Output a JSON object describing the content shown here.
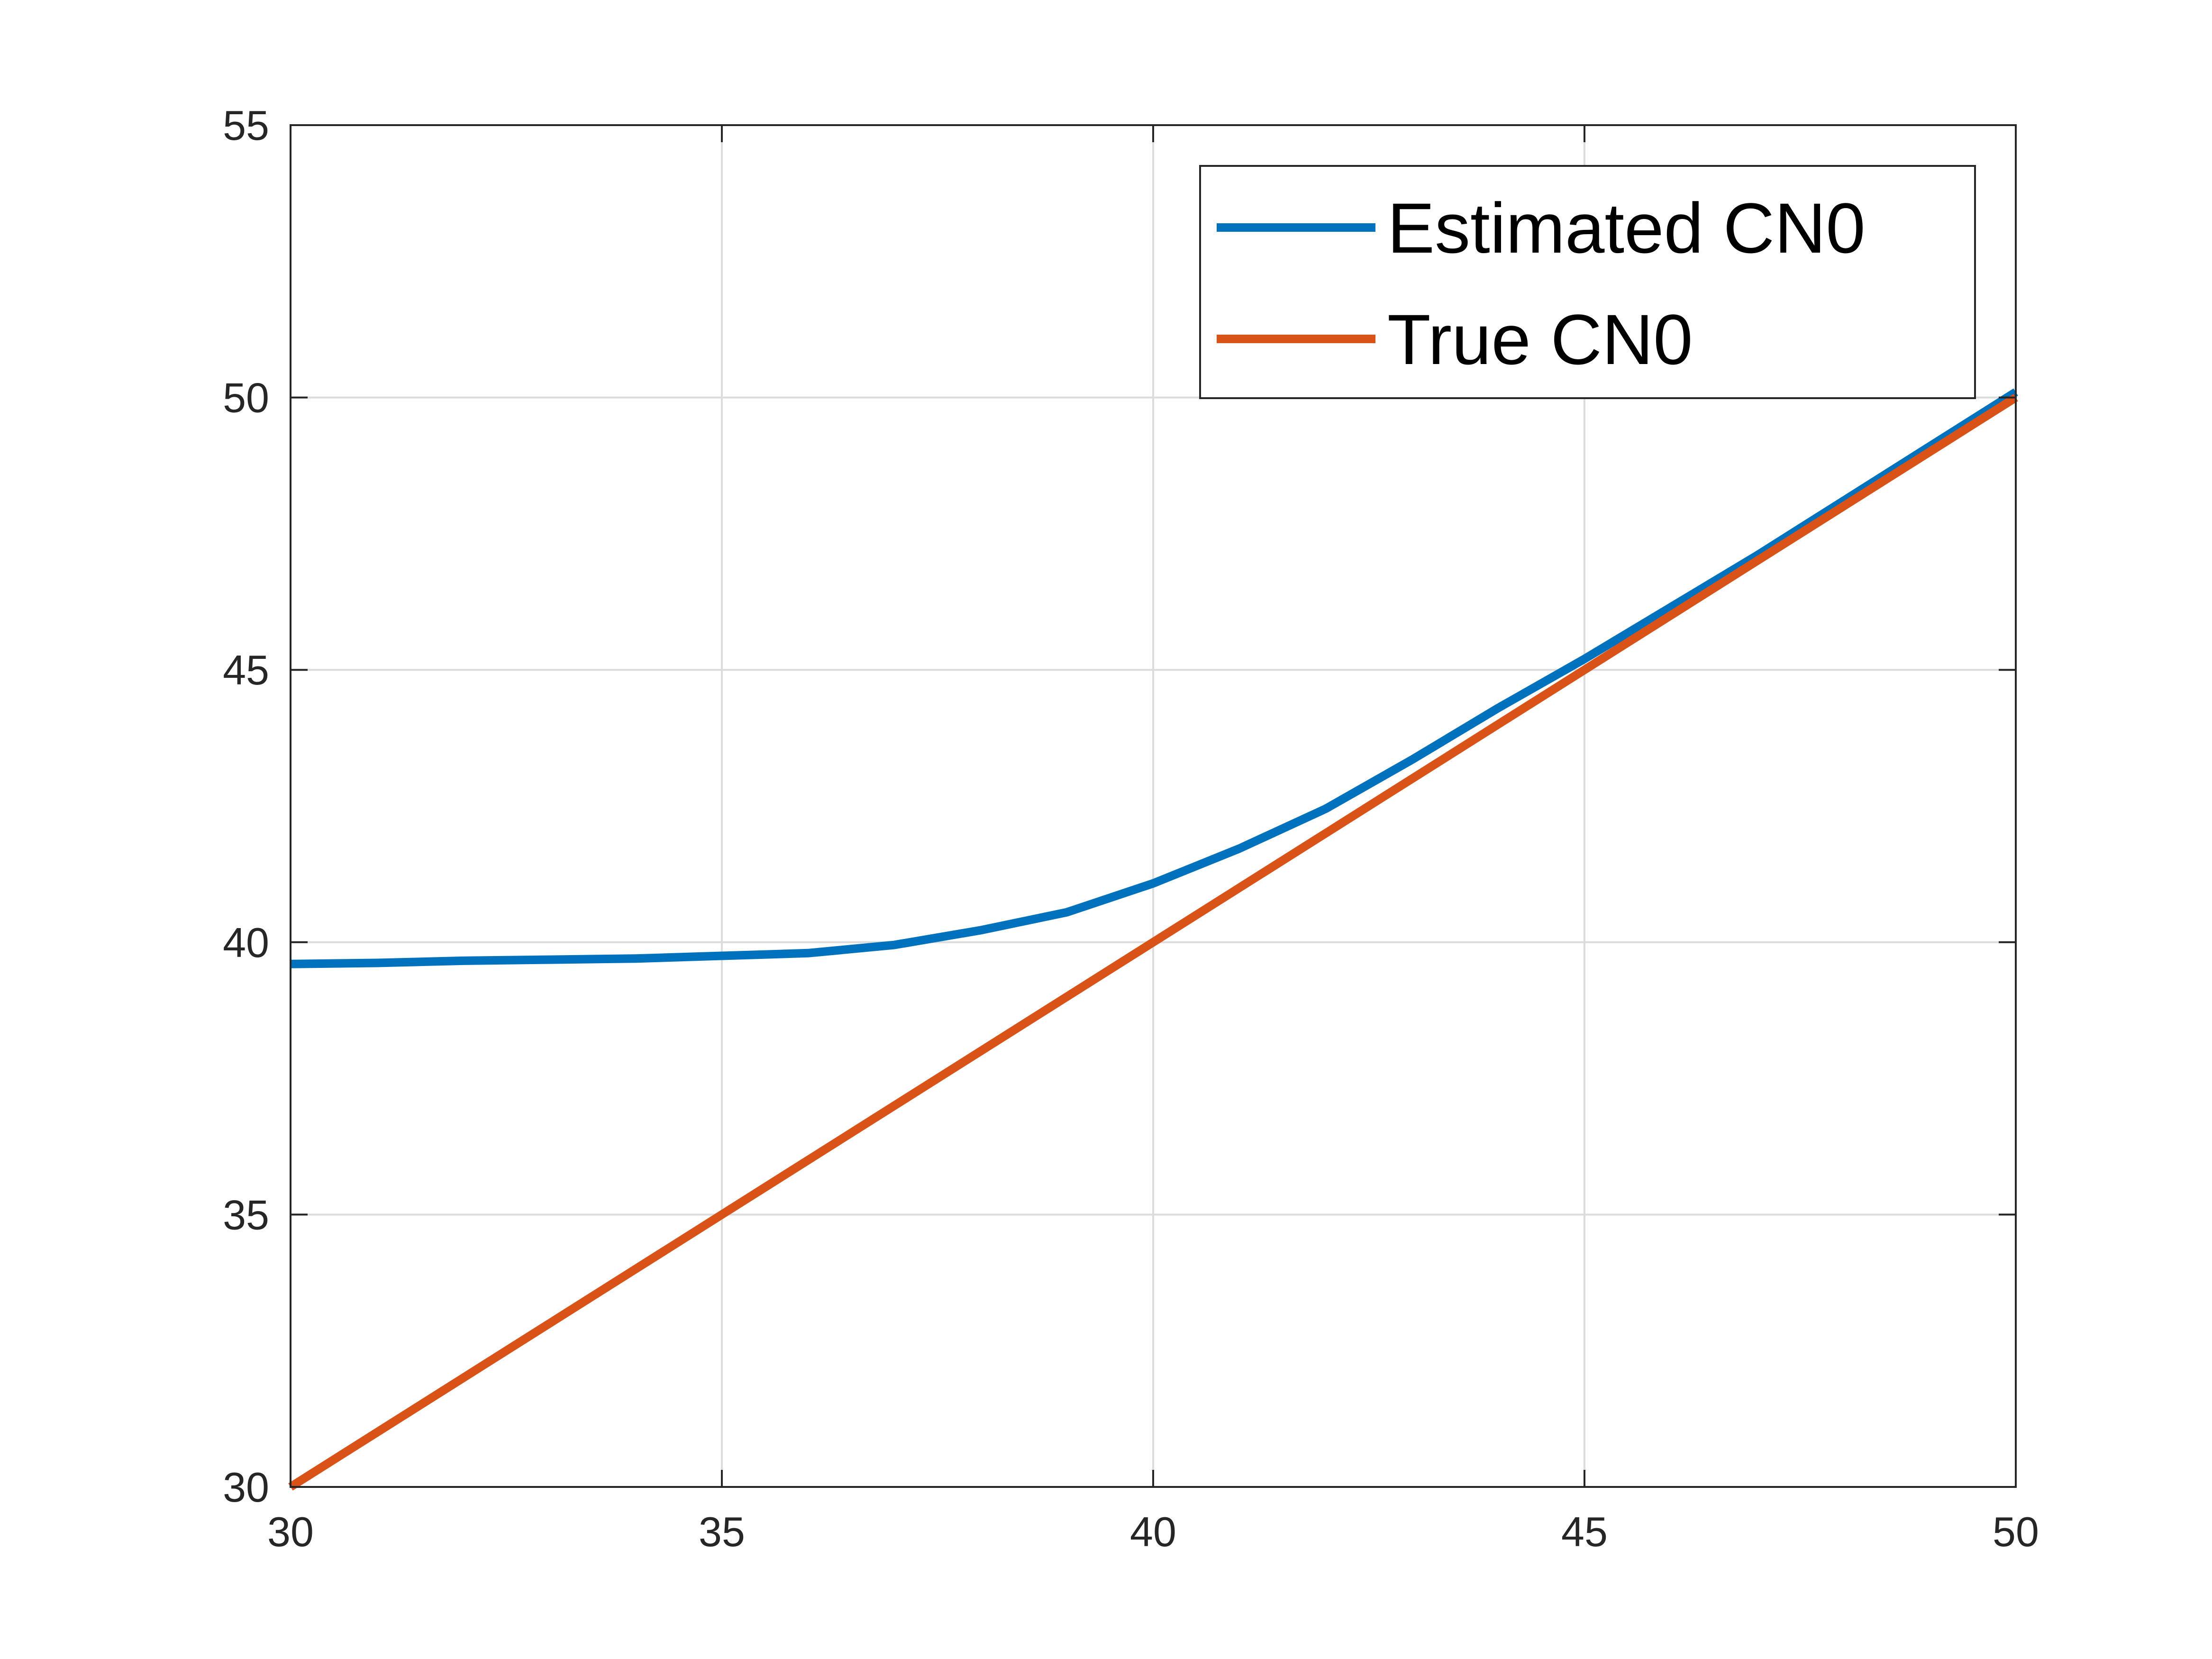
{
  "chart_data": {
    "type": "line",
    "title": "",
    "xlabel": "",
    "ylabel": "",
    "xlim": [
      30,
      50
    ],
    "ylim": [
      30,
      55
    ],
    "xticks": [
      30,
      35,
      40,
      45,
      50
    ],
    "yticks": [
      30,
      35,
      40,
      45,
      50,
      55
    ],
    "xtick_labels": [
      "30",
      "35",
      "40",
      "45",
      "50"
    ],
    "ytick_labels": [
      "30",
      "35",
      "40",
      "45",
      "50",
      "55"
    ],
    "grid": true,
    "box": true,
    "legend_position": "top-right",
    "series": [
      {
        "name": "Estimated CN0",
        "color": "#0072BD",
        "x": [
          30,
          31,
          32,
          33,
          34,
          35,
          36,
          37,
          38,
          39,
          40,
          41,
          42,
          43,
          44,
          45,
          46,
          47,
          48,
          49,
          50
        ],
        "y": [
          39.6,
          39.62,
          39.66,
          39.68,
          39.7,
          39.75,
          39.8,
          39.95,
          40.22,
          40.55,
          41.08,
          41.72,
          42.45,
          43.35,
          44.3,
          45.2,
          46.15,
          47.1,
          48.1,
          49.1,
          50.1
        ]
      },
      {
        "name": "True CN0",
        "color": "#D95319",
        "x": [
          30,
          50
        ],
        "y": [
          30,
          50
        ]
      }
    ]
  }
}
